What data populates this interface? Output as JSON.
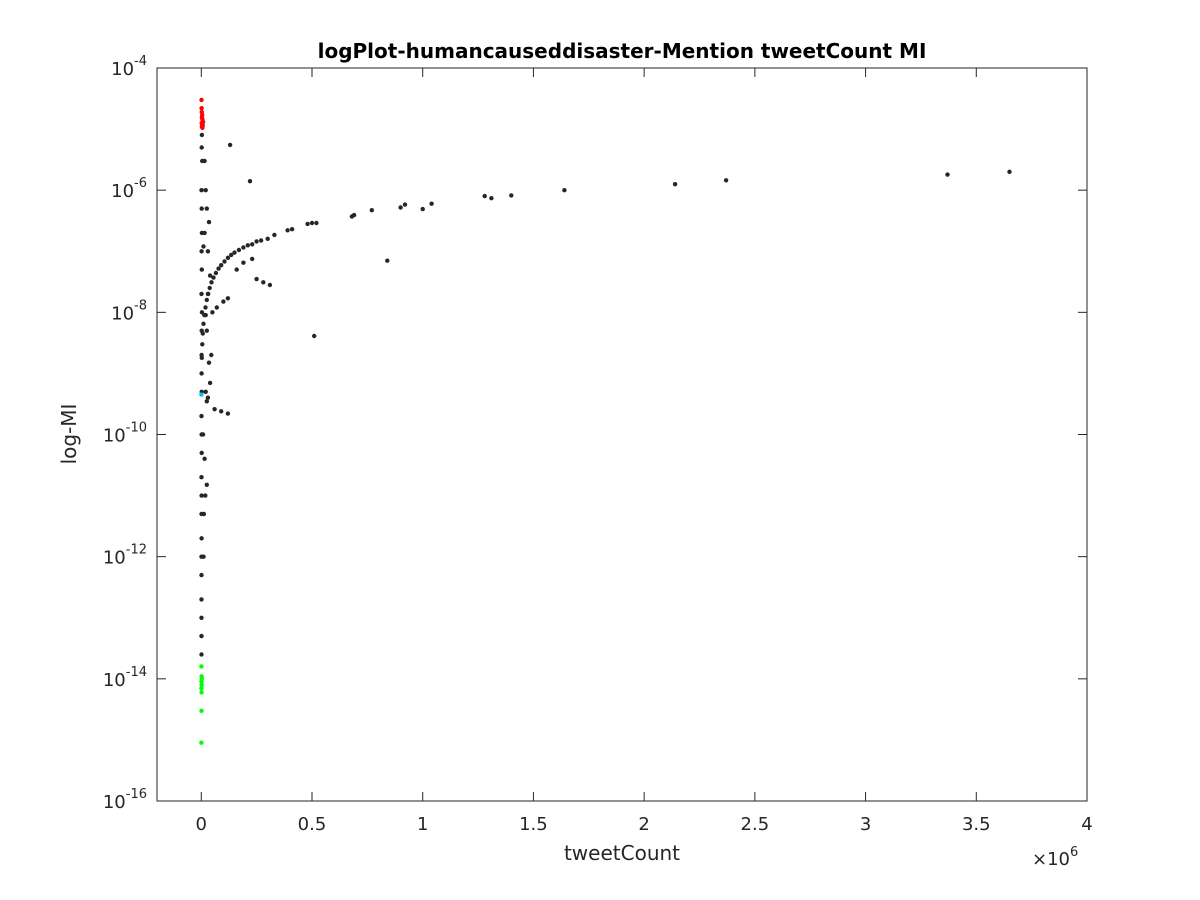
{
  "chart_data": {
    "type": "scatter",
    "title": "logPlot-humancauseddisaster-Mention tweetCount MI",
    "xlabel": "tweetCount",
    "ylabel": "log-MI",
    "x_exponent_label": "×10",
    "x_exponent_power": "6",
    "x_scale_multiplier": 1000000,
    "xlim": [
      -200000,
      4000000
    ],
    "ylim": [
      1e-16,
      0.0001
    ],
    "yscale": "log",
    "x_ticks": [
      0,
      500000,
      1000000,
      1500000,
      2000000,
      2500000,
      3000000,
      3500000,
      4000000
    ],
    "x_tick_labels": [
      "0",
      "0.5",
      "1",
      "1.5",
      "2",
      "2.5",
      "3",
      "3.5",
      "4"
    ],
    "y_ticks": [
      1e-16,
      1e-14,
      1e-12,
      1e-10,
      1e-08,
      1e-06,
      0.0001
    ],
    "y_tick_labels": [
      {
        "base": "10",
        "exp": "-16"
      },
      {
        "base": "10",
        "exp": "-14"
      },
      {
        "base": "10",
        "exp": "-12"
      },
      {
        "base": "10",
        "exp": "-10"
      },
      {
        "base": "10",
        "exp": "-8"
      },
      {
        "base": "10",
        "exp": "-6"
      },
      {
        "base": "10",
        "exp": "-4"
      }
    ],
    "grid": false,
    "box": true,
    "series": [
      {
        "color": "#262626",
        "points": [
          [
            3650000,
            2e-06
          ],
          [
            3370000,
            1.8e-06
          ],
          [
            2370000,
            1.45e-06
          ],
          [
            2140000,
            1.25e-06
          ],
          [
            1640000,
            1e-06
          ],
          [
            1400000,
            8.2e-07
          ],
          [
            1310000,
            7.4e-07
          ],
          [
            1280000,
            8e-07
          ],
          [
            1040000,
            6e-07
          ],
          [
            1000000,
            4.9e-07
          ],
          [
            920000,
            5.8e-07
          ],
          [
            900000,
            5.2e-07
          ],
          [
            770000,
            4.7e-07
          ],
          [
            690000,
            3.9e-07
          ],
          [
            680000,
            3.7e-07
          ],
          [
            520000,
            2.9e-07
          ],
          [
            500000,
            2.9e-07
          ],
          [
            480000,
            2.8e-07
          ],
          [
            410000,
            2.3e-07
          ],
          [
            390000,
            2.2e-07
          ],
          [
            330000,
            1.85e-07
          ],
          [
            300000,
            1.6e-07
          ],
          [
            270000,
            1.5e-07
          ],
          [
            250000,
            1.45e-07
          ],
          [
            230000,
            1.3e-07
          ],
          [
            210000,
            1.25e-07
          ],
          [
            190000,
            1.15e-07
          ],
          [
            170000,
            1.05e-07
          ],
          [
            150000,
            9.5e-08
          ],
          [
            135000,
            8.7e-08
          ],
          [
            120000,
            7.8e-08
          ],
          [
            105000,
            6.8e-08
          ],
          [
            90000,
            5.9e-08
          ],
          [
            78000,
            5.2e-08
          ],
          [
            66000,
            4.4e-08
          ],
          [
            55000,
            3.7e-08
          ],
          [
            46000,
            3.1e-08
          ],
          [
            38000,
            2.5e-08
          ],
          [
            31000,
            2e-08
          ],
          [
            25000,
            1.6e-08
          ],
          [
            19000,
            1.2e-08
          ],
          [
            14000,
            9e-09
          ],
          [
            10000,
            6.5e-09
          ],
          [
            7000,
            4.5e-09
          ],
          [
            4500,
            3e-09
          ],
          [
            2500,
            1.8e-09
          ],
          [
            1200,
            1e-09
          ],
          [
            840000,
            7e-08
          ],
          [
            510000,
            4.1e-09
          ],
          [
            310000,
            2.8e-08
          ],
          [
            280000,
            3.1e-08
          ],
          [
            250000,
            3.5e-08
          ],
          [
            230000,
            7.5e-08
          ],
          [
            190000,
            6.5e-08
          ],
          [
            160000,
            5e-08
          ],
          [
            130000,
            5.5e-06
          ],
          [
            220000,
            1.4e-06
          ],
          [
            120000,
            2.2e-10
          ],
          [
            90000,
            2.4e-10
          ],
          [
            60000,
            2.6e-10
          ],
          [
            120000,
            1.7e-08
          ],
          [
            100000,
            1.5e-08
          ],
          [
            70000,
            1.2e-08
          ],
          [
            50000,
            1e-08
          ],
          [
            45000,
            2e-09
          ],
          [
            35000,
            1.5e-09
          ],
          [
            40000,
            7e-10
          ],
          [
            30000,
            4e-10
          ],
          [
            25000,
            3.5e-10
          ],
          [
            30000,
            2e-08
          ],
          [
            40000,
            4e-08
          ],
          [
            20000,
            9e-09
          ],
          [
            35000,
            3e-07
          ],
          [
            25000,
            5e-07
          ],
          [
            20000,
            1e-06
          ],
          [
            15000,
            3e-06
          ],
          [
            10000,
            1.2e-07
          ],
          [
            30000,
            1e-07
          ],
          [
            15000,
            2e-07
          ],
          [
            25000,
            5e-09
          ],
          [
            20000,
            5e-10
          ],
          [
            15000,
            4e-11
          ],
          [
            25000,
            1.5e-11
          ],
          [
            12000,
            5e-12
          ],
          [
            18000,
            1e-11
          ],
          [
            8000,
            1e-10
          ],
          [
            10000,
            1e-12
          ],
          [
            3000,
            8e-06
          ],
          [
            2000,
            5e-06
          ],
          [
            4000,
            3e-06
          ],
          [
            1000,
            1e-06
          ],
          [
            2000,
            5e-07
          ],
          [
            3000,
            2e-07
          ],
          [
            1500,
            1e-07
          ],
          [
            2500,
            5e-08
          ],
          [
            1000,
            2e-08
          ],
          [
            3000,
            1e-08
          ],
          [
            2000,
            5e-09
          ],
          [
            1500,
            2e-09
          ],
          [
            2000,
            5e-10
          ],
          [
            1000,
            2e-10
          ],
          [
            1500,
            1e-10
          ],
          [
            2000,
            5e-11
          ],
          [
            1000,
            2e-11
          ],
          [
            1500,
            1e-11
          ],
          [
            1000,
            5e-12
          ],
          [
            1500,
            2e-12
          ],
          [
            1000,
            1e-12
          ],
          [
            1000,
            5e-13
          ],
          [
            800,
            2e-13
          ],
          [
            1000,
            1e-13
          ],
          [
            900,
            5e-14
          ],
          [
            800,
            2.5e-14
          ]
        ]
      },
      {
        "color": "#ff0000",
        "points": [
          [
            1000,
            3e-05
          ],
          [
            1500,
            2.2e-05
          ],
          [
            2500,
            1.9e-05
          ],
          [
            4000,
            1.7e-05
          ],
          [
            3000,
            1.55e-05
          ],
          [
            5000,
            1.45e-05
          ],
          [
            6000,
            1.35e-05
          ],
          [
            8000,
            1.3e-05
          ],
          [
            2000,
            1.25e-05
          ],
          [
            4000,
            1.2e-05
          ],
          [
            7000,
            1.15e-05
          ],
          [
            3000,
            1.1e-05
          ],
          [
            5000,
            1.05e-05
          ]
        ]
      },
      {
        "color": "#00ff00",
        "points": [
          [
            500,
            1.6e-14
          ],
          [
            1500,
            1.1e-14
          ],
          [
            2500,
            1e-14
          ],
          [
            1000,
            9e-15
          ],
          [
            2000,
            8e-15
          ],
          [
            500,
            7e-15
          ],
          [
            1500,
            6e-15
          ],
          [
            800,
            3e-15
          ],
          [
            500,
            9e-16
          ]
        ]
      },
      {
        "color": "#00bfff",
        "points": [
          [
            500,
            4.5e-10
          ]
        ]
      }
    ]
  }
}
